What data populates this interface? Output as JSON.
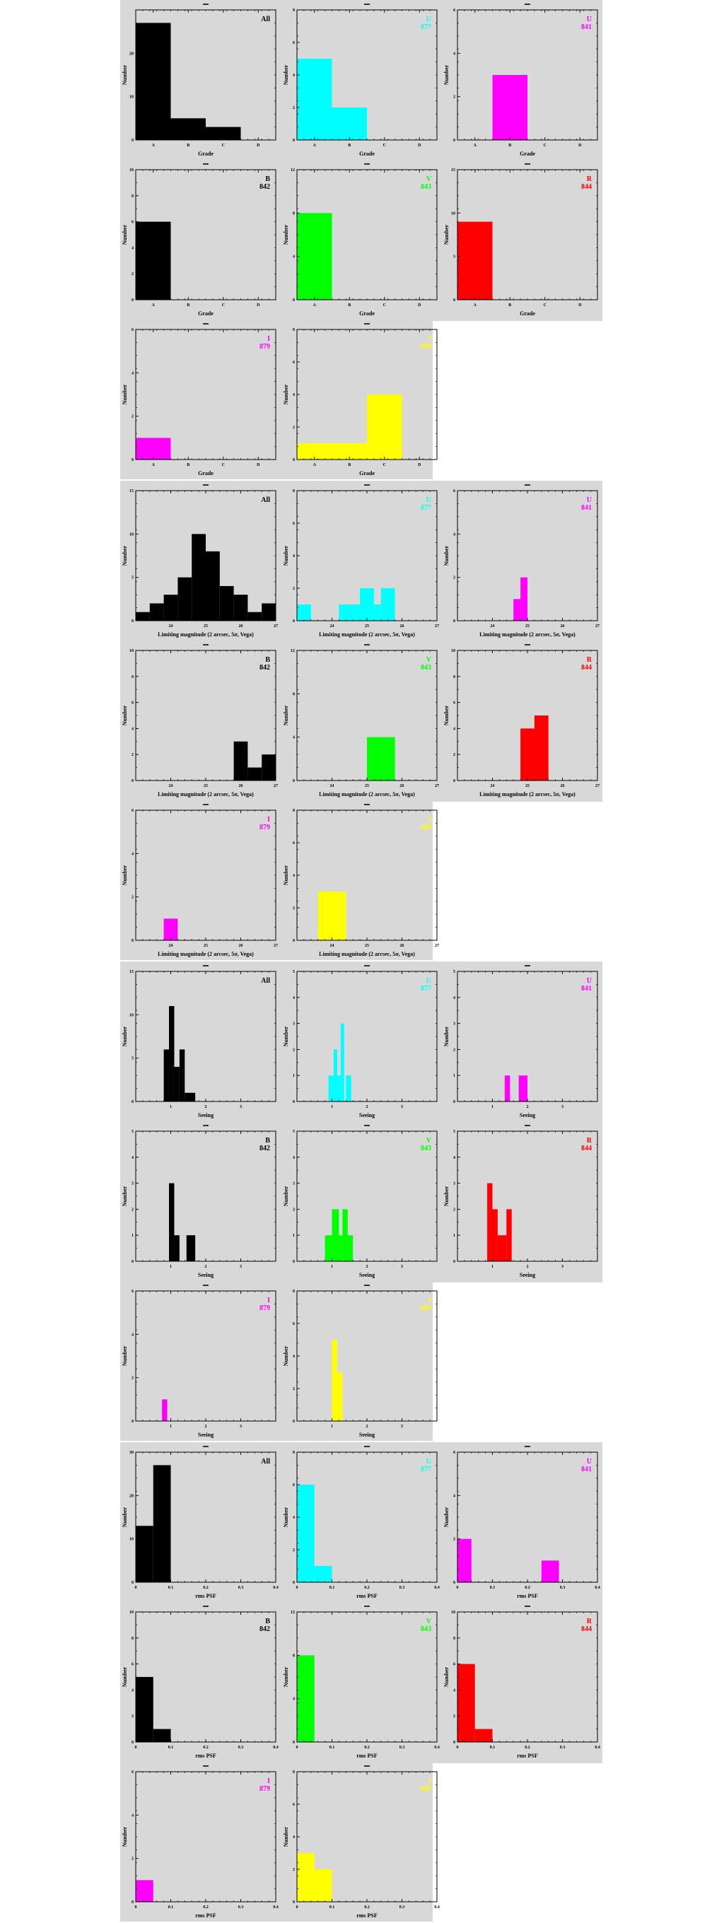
{
  "sections": [
    {
      "name": "grade",
      "xlabel": "Grade",
      "xlim": [
        0,
        4
      ],
      "xticks": [
        {
          "v": 0.5,
          "l": "A"
        },
        {
          "v": 1.5,
          "l": "B"
        },
        {
          "v": 2.5,
          "l": "C"
        },
        {
          "v": 3.5,
          "l": "D"
        }
      ],
      "xticks_minor": [],
      "panels": [
        {
          "label": "All",
          "id": "",
          "color": "#000000",
          "ylim": [
            0,
            30
          ],
          "yticks": [
            0,
            10,
            20
          ],
          "bars": [
            {
              "x0": 0,
              "x1": 1,
              "y": 27
            },
            {
              "x0": 1,
              "x1": 2,
              "y": 5
            },
            {
              "x0": 2,
              "x1": 3,
              "y": 3
            }
          ]
        },
        {
          "label": "U",
          "id": "877",
          "color": "#00ffff",
          "ylim": [
            0,
            8
          ],
          "yticks": [
            0,
            2,
            4,
            6,
            8
          ],
          "bars": [
            {
              "x0": 0,
              "x1": 1,
              "y": 5
            },
            {
              "x0": 1,
              "x1": 2,
              "y": 2
            }
          ]
        },
        {
          "label": "U",
          "id": "841",
          "color": "#ff00ff",
          "ylim": [
            0,
            6
          ],
          "yticks": [
            0,
            2,
            4,
            6
          ],
          "bars": [
            {
              "x0": 1,
              "x1": 2,
              "y": 3
            }
          ]
        },
        {
          "label": "B",
          "id": "842",
          "color": "#000000",
          "ylim": [
            0,
            10
          ],
          "yticks": [
            0,
            2,
            4,
            6,
            8,
            10
          ],
          "bars": [
            {
              "x0": 0,
              "x1": 1,
              "y": 6
            }
          ]
        },
        {
          "label": "V",
          "id": "843",
          "color": "#00ff00",
          "ylim": [
            0,
            12
          ],
          "yticks": [
            0,
            4,
            8,
            12
          ],
          "bars": [
            {
              "x0": 0,
              "x1": 1,
              "y": 8
            }
          ]
        },
        {
          "label": "R",
          "id": "844",
          "color": "#ff0000",
          "ylim": [
            0,
            15
          ],
          "yticks": [
            0,
            5,
            10,
            15
          ],
          "bars": [
            {
              "x0": 0,
              "x1": 1,
              "y": 9
            }
          ]
        },
        {
          "label": "I",
          "id": "879",
          "color": "#ff00ff",
          "ylim": [
            0,
            6
          ],
          "yticks": [
            0,
            2,
            4,
            6
          ],
          "bars": [
            {
              "x0": 0,
              "x1": 1,
              "y": 1
            }
          ]
        },
        {
          "label": "I",
          "id": "880",
          "color": "#ffff00",
          "ylim": [
            0,
            8
          ],
          "yticks": [
            0,
            2,
            4,
            6,
            8
          ],
          "bars": [
            {
              "x0": 0,
              "x1": 2,
              "y": 1
            },
            {
              "x0": 2,
              "x1": 3,
              "y": 4
            }
          ]
        }
      ]
    },
    {
      "name": "limiting-magnitude",
      "xlabel": "Limiting magnitude (2 arcsec, 5σ, Vega)",
      "xlim": [
        23,
        27
      ],
      "xticks": [
        {
          "v": 24,
          "l": "24"
        },
        {
          "v": 25,
          "l": "25"
        },
        {
          "v": 26,
          "l": "26"
        },
        {
          "v": 27,
          "l": "27"
        }
      ],
      "xticks_minor": [],
      "panels": [
        {
          "label": "All",
          "id": "",
          "color": "#000000",
          "ylim": [
            0,
            15
          ],
          "yticks": [
            0,
            5,
            10,
            15
          ],
          "bars": [
            {
              "x0": 23.0,
              "x1": 23.4,
              "y": 1
            },
            {
              "x0": 23.4,
              "x1": 23.8,
              "y": 2
            },
            {
              "x0": 23.8,
              "x1": 24.2,
              "y": 3
            },
            {
              "x0": 24.2,
              "x1": 24.6,
              "y": 5
            },
            {
              "x0": 24.6,
              "x1": 25.0,
              "y": 10
            },
            {
              "x0": 25.0,
              "x1": 25.4,
              "y": 8
            },
            {
              "x0": 25.4,
              "x1": 25.8,
              "y": 4
            },
            {
              "x0": 25.8,
              "x1": 26.2,
              "y": 3
            },
            {
              "x0": 26.2,
              "x1": 26.6,
              "y": 1
            },
            {
              "x0": 26.6,
              "x1": 27.0,
              "y": 2
            }
          ]
        },
        {
          "label": "U",
          "id": "877",
          "color": "#00ffff",
          "ylim": [
            0,
            8
          ],
          "yticks": [
            0,
            2,
            4,
            6,
            8
          ],
          "bars": [
            {
              "x0": 23.0,
              "x1": 23.4,
              "y": 1
            },
            {
              "x0": 24.2,
              "x1": 24.6,
              "y": 1
            },
            {
              "x0": 24.6,
              "x1": 24.8,
              "y": 1
            },
            {
              "x0": 24.8,
              "x1": 25.2,
              "y": 2
            },
            {
              "x0": 25.2,
              "x1": 25.4,
              "y": 1
            },
            {
              "x0": 25.4,
              "x1": 25.8,
              "y": 2
            }
          ]
        },
        {
          "label": "U",
          "id": "841",
          "color": "#ff00ff",
          "ylim": [
            0,
            6
          ],
          "yticks": [
            0,
            2,
            4,
            6
          ],
          "bars": [
            {
              "x0": 24.6,
              "x1": 24.8,
              "y": 1
            },
            {
              "x0": 24.8,
              "x1": 25.0,
              "y": 2
            }
          ]
        },
        {
          "label": "B",
          "id": "842",
          "color": "#000000",
          "ylim": [
            0,
            10
          ],
          "yticks": [
            0,
            2,
            4,
            6,
            8,
            10
          ],
          "bars": [
            {
              "x0": 25.8,
              "x1": 26.2,
              "y": 3
            },
            {
              "x0": 26.2,
              "x1": 26.6,
              "y": 1
            },
            {
              "x0": 26.6,
              "x1": 27.0,
              "y": 2
            }
          ]
        },
        {
          "label": "V",
          "id": "843",
          "color": "#00ff00",
          "ylim": [
            0,
            12
          ],
          "yticks": [
            0,
            4,
            8,
            12
          ],
          "bars": [
            {
              "x0": 25.0,
              "x1": 25.8,
              "y": 4
            }
          ]
        },
        {
          "label": "R",
          "id": "844",
          "color": "#ff0000",
          "ylim": [
            0,
            10
          ],
          "yticks": [
            0,
            2,
            4,
            6,
            8,
            10
          ],
          "bars": [
            {
              "x0": 24.8,
              "x1": 25.2,
              "y": 4
            },
            {
              "x0": 25.2,
              "x1": 25.6,
              "y": 5
            }
          ]
        },
        {
          "label": "I",
          "id": "879",
          "color": "#ff00ff",
          "ylim": [
            0,
            6
          ],
          "yticks": [
            0,
            2,
            4,
            6
          ],
          "bars": [
            {
              "x0": 23.8,
              "x1": 24.2,
              "y": 1
            }
          ]
        },
        {
          "label": "I",
          "id": "880",
          "color": "#ffff00",
          "ylim": [
            0,
            8
          ],
          "yticks": [
            0,
            2,
            4,
            6,
            8
          ],
          "bars": [
            {
              "x0": 23.6,
              "x1": 24.4,
              "y": 3
            }
          ]
        }
      ]
    },
    {
      "name": "seeing",
      "xlabel": "Seeing",
      "xlim": [
        0,
        4
      ],
      "xticks": [
        {
          "v": 1,
          "l": "1"
        },
        {
          "v": 2,
          "l": "2"
        },
        {
          "v": 3,
          "l": "3"
        }
      ],
      "xticks_minor": [],
      "panels": [
        {
          "label": "All",
          "id": "",
          "color": "#000000",
          "ylim": [
            0,
            15
          ],
          "yticks": [
            0,
            5,
            10,
            15
          ],
          "bars": [
            {
              "x0": 0.8,
              "x1": 0.95,
              "y": 6
            },
            {
              "x0": 0.95,
              "x1": 1.1,
              "y": 11
            },
            {
              "x0": 1.1,
              "x1": 1.25,
              "y": 4
            },
            {
              "x0": 1.25,
              "x1": 1.4,
              "y": 6
            },
            {
              "x0": 1.4,
              "x1": 1.7,
              "y": 1
            }
          ]
        },
        {
          "label": "U",
          "id": "877",
          "color": "#00ffff",
          "ylim": [
            0,
            5
          ],
          "yticks": [
            0,
            1,
            2,
            3,
            4,
            5
          ],
          "bars": [
            {
              "x0": 0.9,
              "x1": 1.05,
              "y": 1
            },
            {
              "x0": 1.05,
              "x1": 1.15,
              "y": 2
            },
            {
              "x0": 1.15,
              "x1": 1.25,
              "y": 1
            },
            {
              "x0": 1.25,
              "x1": 1.35,
              "y": 3
            },
            {
              "x0": 1.4,
              "x1": 1.55,
              "y": 1
            }
          ]
        },
        {
          "label": "U",
          "id": "841",
          "color": "#ff00ff",
          "ylim": [
            0,
            5
          ],
          "yticks": [
            0,
            1,
            2,
            3,
            4,
            5
          ],
          "bars": [
            {
              "x0": 1.35,
              "x1": 1.5,
              "y": 1
            },
            {
              "x0": 1.75,
              "x1": 2.0,
              "y": 1
            }
          ]
        },
        {
          "label": "B",
          "id": "842",
          "color": "#000000",
          "ylim": [
            0,
            5
          ],
          "yticks": [
            0,
            1,
            2,
            3,
            4,
            5
          ],
          "bars": [
            {
              "x0": 0.95,
              "x1": 1.1,
              "y": 3
            },
            {
              "x0": 1.1,
              "x1": 1.25,
              "y": 1
            },
            {
              "x0": 1.45,
              "x1": 1.7,
              "y": 1
            }
          ]
        },
        {
          "label": "V",
          "id": "843",
          "color": "#00ff00",
          "ylim": [
            0,
            5
          ],
          "yticks": [
            0,
            1,
            2,
            3,
            4,
            5
          ],
          "bars": [
            {
              "x0": 0.8,
              "x1": 1.0,
              "y": 1
            },
            {
              "x0": 1.0,
              "x1": 1.2,
              "y": 2
            },
            {
              "x0": 1.2,
              "x1": 1.3,
              "y": 1
            },
            {
              "x0": 1.3,
              "x1": 1.45,
              "y": 2
            },
            {
              "x0": 1.45,
              "x1": 1.6,
              "y": 1
            }
          ]
        },
        {
          "label": "R",
          "id": "844",
          "color": "#ff0000",
          "ylim": [
            0,
            5
          ],
          "yticks": [
            0,
            1,
            2,
            3,
            4,
            5
          ],
          "bars": [
            {
              "x0": 0.85,
              "x1": 1.0,
              "y": 3
            },
            {
              "x0": 1.0,
              "x1": 1.15,
              "y": 2
            },
            {
              "x0": 1.15,
              "x1": 1.4,
              "y": 1
            },
            {
              "x0": 1.4,
              "x1": 1.55,
              "y": 2
            }
          ]
        },
        {
          "label": "I",
          "id": "879",
          "color": "#ff00ff",
          "ylim": [
            0,
            6
          ],
          "yticks": [
            0,
            2,
            4,
            6
          ],
          "bars": [
            {
              "x0": 0.75,
              "x1": 0.9,
              "y": 1
            }
          ]
        },
        {
          "label": "I",
          "id": "880",
          "color": "#ffff00",
          "ylim": [
            0,
            8
          ],
          "yticks": [
            0,
            2,
            4,
            6,
            8
          ],
          "bars": [
            {
              "x0": 1.0,
              "x1": 1.15,
              "y": 5
            },
            {
              "x0": 1.15,
              "x1": 1.3,
              "y": 3
            }
          ]
        }
      ]
    },
    {
      "name": "rms-psf",
      "xlabel": "rms PSF",
      "xlim": [
        0,
        0.4
      ],
      "xticks": [
        {
          "v": 0,
          "l": "0"
        },
        {
          "v": 0.1,
          "l": "0.1"
        },
        {
          "v": 0.2,
          "l": "0.2"
        },
        {
          "v": 0.3,
          "l": "0.3"
        },
        {
          "v": 0.4,
          "l": "0.4"
        }
      ],
      "xticks_minor": [],
      "panels": [
        {
          "label": "All",
          "id": "",
          "color": "#000000",
          "ylim": [
            0,
            30
          ],
          "yticks": [
            0,
            10,
            20,
            30
          ],
          "bars": [
            {
              "x0": 0.0,
              "x1": 0.05,
              "y": 13
            },
            {
              "x0": 0.05,
              "x1": 0.1,
              "y": 27
            }
          ]
        },
        {
          "label": "U",
          "id": "877",
          "color": "#00ffff",
          "ylim": [
            0,
            8
          ],
          "yticks": [
            0,
            2,
            4,
            6,
            8
          ],
          "bars": [
            {
              "x0": 0.0,
              "x1": 0.05,
              "y": 6
            },
            {
              "x0": 0.05,
              "x1": 0.1,
              "y": 1
            }
          ]
        },
        {
          "label": "U",
          "id": "841",
          "color": "#ff00ff",
          "ylim": [
            0,
            6
          ],
          "yticks": [
            0,
            2,
            4,
            6
          ],
          "bars": [
            {
              "x0": 0.0,
              "x1": 0.04,
              "y": 2
            },
            {
              "x0": 0.24,
              "x1": 0.29,
              "y": 1
            }
          ]
        },
        {
          "label": "B",
          "id": "842",
          "color": "#000000",
          "ylim": [
            0,
            10
          ],
          "yticks": [
            0,
            2,
            4,
            6,
            8,
            10
          ],
          "bars": [
            {
              "x0": 0.0,
              "x1": 0.05,
              "y": 5
            },
            {
              "x0": 0.05,
              "x1": 0.1,
              "y": 1
            }
          ]
        },
        {
          "label": "V",
          "id": "843",
          "color": "#00ff00",
          "ylim": [
            0,
            12
          ],
          "yticks": [
            0,
            4,
            8,
            12
          ],
          "bars": [
            {
              "x0": 0.0,
              "x1": 0.05,
              "y": 8
            }
          ]
        },
        {
          "label": "R",
          "id": "844",
          "color": "#ff0000",
          "ylim": [
            0,
            10
          ],
          "yticks": [
            0,
            2,
            4,
            6,
            8,
            10
          ],
          "bars": [
            {
              "x0": 0.0,
              "x1": 0.05,
              "y": 6
            },
            {
              "x0": 0.05,
              "x1": 0.1,
              "y": 1
            }
          ]
        },
        {
          "label": "I",
          "id": "879",
          "color": "#ff00ff",
          "ylim": [
            0,
            6
          ],
          "yticks": [
            0,
            2,
            4,
            6
          ],
          "bars": [
            {
              "x0": 0.0,
              "x1": 0.05,
              "y": 1
            }
          ]
        },
        {
          "label": "I",
          "id": "880",
          "color": "#ffff00",
          "ylim": [
            0,
            8
          ],
          "yticks": [
            0,
            2,
            4,
            6,
            8
          ],
          "bars": [
            {
              "x0": 0.0,
              "x1": 0.05,
              "y": 3
            },
            {
              "x0": 0.05,
              "x1": 0.1,
              "y": 2
            }
          ]
        }
      ]
    }
  ],
  "ylabel": "Number",
  "chart_data": {
    "type": "bar",
    "note_series": "histograms; see sections[].panels[].bars for bin edges (x0,x1) and counts (y)"
  }
}
